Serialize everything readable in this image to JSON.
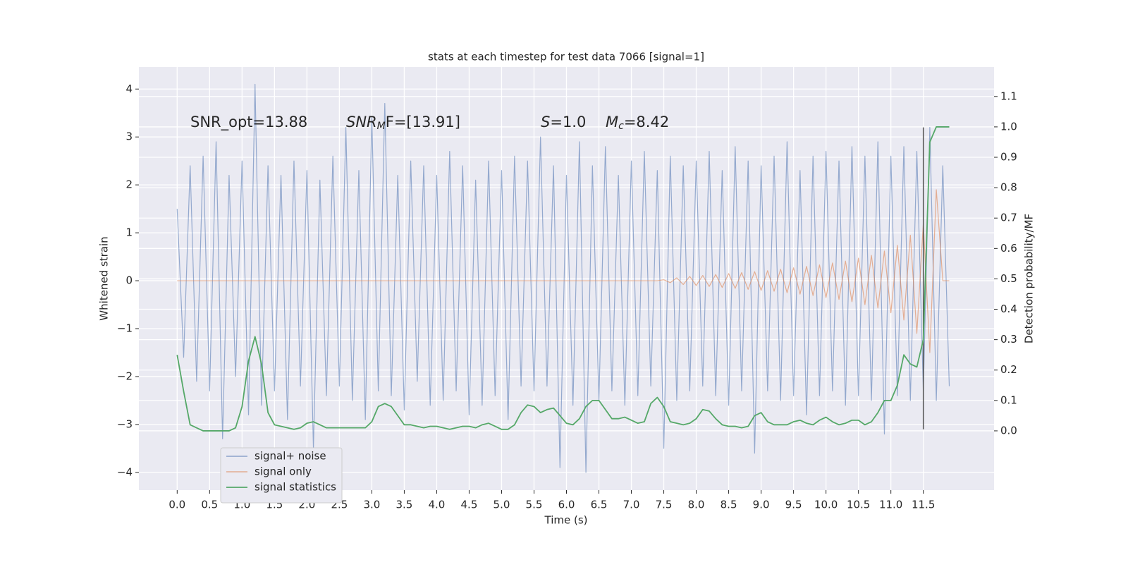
{
  "chart_data": {
    "type": "line",
    "title": "stats at each timestep for test data 7066 [signal=1]",
    "xlabel": "Time (s)",
    "ylabel": "Whitened strain",
    "y2label": "Detection probability/MF",
    "xlim": [
      -0.59,
      12.59
    ],
    "ylim": [
      -4.37,
      4.46
    ],
    "y2lim": [
      -0.195,
      1.197
    ],
    "xticks": [
      {
        "value": 0,
        "label": "0.0"
      },
      0.5,
      {
        "value": 1,
        "label": "1.0"
      },
      1.5,
      {
        "value": 2,
        "label": "2.0"
      },
      2.5,
      {
        "value": 3,
        "label": "3.0"
      },
      3.5,
      {
        "value": 4,
        "label": "4.0"
      },
      4.5,
      {
        "value": 5,
        "label": "5.0"
      },
      5.5,
      {
        "value": 6,
        "label": "6.0"
      },
      6.5,
      {
        "value": 7,
        "label": "7.0"
      },
      7.5,
      {
        "value": 8,
        "label": "8.0"
      },
      8.5,
      {
        "value": 9,
        "label": "9.0"
      },
      9.5,
      {
        "value": 10,
        "label": "10.0"
      },
      10.5,
      {
        "value": 11,
        "label": "11.0"
      },
      11.5
    ],
    "yticks": [
      {
        "value": -4,
        "label": "−4"
      },
      {
        "value": -3,
        "label": "−3"
      },
      {
        "value": -2,
        "label": "−2"
      },
      {
        "value": -1,
        "label": "−1"
      },
      0,
      1,
      2,
      3,
      4
    ],
    "y2ticks": [
      {
        "value": 0,
        "label": "0.0"
      },
      0.1,
      0.2,
      0.3,
      0.4,
      0.5,
      0.6,
      0.7,
      0.8,
      0.9,
      {
        "value": 1,
        "label": "1.0"
      },
      1.1
    ],
    "grid": true,
    "legend": "lower left",
    "x": [
      0,
      0.1,
      0.2,
      0.3,
      0.4,
      0.5,
      0.6,
      0.7,
      0.8,
      0.9,
      1,
      1.1,
      1.2,
      1.3,
      1.4,
      1.5,
      1.6,
      1.7,
      1.8,
      1.9,
      2,
      2.1,
      2.2,
      2.3,
      2.4,
      2.5,
      2.6,
      2.7,
      2.8,
      2.9,
      3,
      3.1,
      3.2,
      3.3,
      3.4,
      3.5,
      3.6,
      3.7,
      3.8,
      3.9,
      4,
      4.1,
      4.2,
      4.3,
      4.4,
      4.5,
      4.6,
      4.7,
      4.8,
      4.9,
      5,
      5.1,
      5.2,
      5.3,
      5.4,
      5.5,
      5.6,
      5.7,
      5.8,
      5.9,
      6,
      6.1,
      6.2,
      6.3,
      6.4,
      6.5,
      6.6,
      6.7,
      6.8,
      6.9,
      7,
      7.1,
      7.2,
      7.3,
      7.4,
      7.5,
      7.6,
      7.7,
      7.8,
      7.9,
      8,
      8.1,
      8.2,
      8.3,
      8.4,
      8.5,
      8.6,
      8.7,
      8.8,
      8.9,
      9,
      9.1,
      9.2,
      9.3,
      9.4,
      9.5,
      9.6,
      9.7,
      9.8,
      9.9,
      10,
      10.1,
      10.2,
      10.3,
      10.4,
      10.5,
      10.6,
      10.7,
      10.8,
      10.9,
      11,
      11.1,
      11.2,
      11.3,
      11.4,
      11.5,
      11.6,
      11.7,
      11.8,
      11.9
    ],
    "series": [
      {
        "name": "signal+ noise",
        "color": "#4c72b0",
        "values": [
          1.5,
          -1.6,
          2.4,
          -2.1,
          2.6,
          -2.3,
          2.9,
          -3.3,
          2.2,
          -2.0,
          2.5,
          -2.8,
          4.1,
          -2.6,
          2.4,
          -2.3,
          2.2,
          -2.9,
          2.5,
          -2.2,
          2.3,
          -3.5,
          2.1,
          -2.4,
          2.6,
          -2.2,
          3.2,
          -2.5,
          2.3,
          -2.9,
          3.4,
          -2.3,
          3.7,
          -2.4,
          2.2,
          -2.7,
          2.5,
          -2.1,
          2.4,
          -2.6,
          2.2,
          -2.5,
          2.7,
          -2.3,
          2.4,
          -2.8,
          2.1,
          -2.6,
          2.5,
          -2.4,
          2.3,
          -2.9,
          2.6,
          -2.2,
          2.5,
          -2.3,
          3.0,
          -2.2,
          2.4,
          -3.9,
          2.2,
          -2.6,
          2.9,
          -4.0,
          2.4,
          -2.5,
          2.8,
          -2.3,
          2.2,
          -2.6,
          2.5,
          -2.4,
          2.7,
          -2.2,
          2.3,
          -3.5,
          2.6,
          -2.5,
          2.4,
          -2.3,
          2.5,
          -2.2,
          2.7,
          -2.4,
          2.3,
          -2.6,
          2.8,
          -2.3,
          2.5,
          -3.6,
          2.4,
          -2.3,
          2.6,
          -2.5,
          2.9,
          -2.4,
          2.3,
          -2.8,
          2.6,
          -2.4,
          2.7,
          -2.3,
          2.5,
          -2.6,
          2.8,
          -2.4,
          2.6,
          -2.5,
          2.9,
          -3.2,
          2.6,
          -2.4,
          2.8,
          -2.5,
          2.7,
          -2.3,
          3.2,
          -2.5,
          2.4,
          -2.2
        ]
      },
      {
        "name": "signal only",
        "color": "#dd8452",
        "values": [
          0,
          0,
          0,
          0,
          0,
          0,
          0,
          0,
          0,
          0,
          0,
          0,
          0,
          0,
          0,
          0,
          0,
          0,
          0,
          0,
          0,
          0,
          0,
          0,
          0,
          0,
          0,
          0,
          0,
          0,
          0,
          0,
          0,
          0,
          0,
          0,
          0,
          0,
          0,
          0,
          0,
          0,
          0,
          0,
          0,
          0,
          0,
          0,
          0,
          0,
          0,
          0,
          0,
          0,
          0,
          0,
          0,
          0,
          0,
          0,
          0,
          0,
          0,
          0,
          0,
          0,
          0,
          0,
          0,
          0,
          0,
          0,
          0,
          0,
          0,
          0.02,
          -0.04,
          0.06,
          -0.08,
          0.09,
          -0.1,
          0.11,
          -0.12,
          0.13,
          -0.14,
          0.15,
          -0.16,
          0.17,
          -0.18,
          0.19,
          -0.2,
          0.21,
          -0.22,
          0.24,
          -0.25,
          0.27,
          -0.28,
          0.3,
          -0.31,
          0.33,
          -0.35,
          0.37,
          -0.39,
          0.41,
          -0.44,
          0.47,
          -0.5,
          0.53,
          -0.57,
          0.62,
          -0.67,
          0.74,
          -0.82,
          0.95,
          -1.1,
          1.2,
          -1.5,
          1.9,
          0,
          0
        ]
      },
      {
        "name": "signal statistics",
        "color": "#55a868",
        "axis": "y2",
        "values": [
          0.25,
          0.13,
          0.02,
          0.01,
          0,
          0,
          0,
          0,
          0,
          0.01,
          0.08,
          0.23,
          0.31,
          0.22,
          0.06,
          0.02,
          0.015,
          0.01,
          0.005,
          0.01,
          0.025,
          0.03,
          0.02,
          0.01,
          0.01,
          0.01,
          0.01,
          0.01,
          0.01,
          0.01,
          0.03,
          0.08,
          0.09,
          0.08,
          0.05,
          0.02,
          0.02,
          0.015,
          0.01,
          0.015,
          0.015,
          0.01,
          0.005,
          0.01,
          0.015,
          0.015,
          0.01,
          0.02,
          0.025,
          0.015,
          0.005,
          0.005,
          0.02,
          0.06,
          0.085,
          0.08,
          0.06,
          0.07,
          0.075,
          0.05,
          0.025,
          0.02,
          0.04,
          0.08,
          0.1,
          0.1,
          0.07,
          0.04,
          0.04,
          0.045,
          0.035,
          0.025,
          0.03,
          0.09,
          0.11,
          0.08,
          0.03,
          0.025,
          0.02,
          0.025,
          0.04,
          0.07,
          0.065,
          0.04,
          0.02,
          0.015,
          0.015,
          0.01,
          0.015,
          0.05,
          0.06,
          0.03,
          0.02,
          0.02,
          0.02,
          0.03,
          0.035,
          0.025,
          0.02,
          0.035,
          0.045,
          0.03,
          0.02,
          0.025,
          0.035,
          0.035,
          0.02,
          0.03,
          0.06,
          0.1,
          0.1,
          0.15,
          0.25,
          0.22,
          0.21,
          0.3,
          0.95,
          1.0,
          1.0,
          1.0
        ]
      }
    ],
    "vline": {
      "x": 11.5,
      "ymin": -3.1,
      "ymax": 3.2,
      "color": "#555555"
    },
    "annotations": {
      "snr_opt": "SNR_opt=13.88",
      "snr_mf": {
        "base": "SNR",
        "sub": "M",
        "rest": "F=[13.91]"
      },
      "s": {
        "symbol": "S",
        "rest": "=1.0"
      },
      "mc": {
        "symbol": "M",
        "sub": "c",
        "rest": "=8.42"
      }
    }
  }
}
